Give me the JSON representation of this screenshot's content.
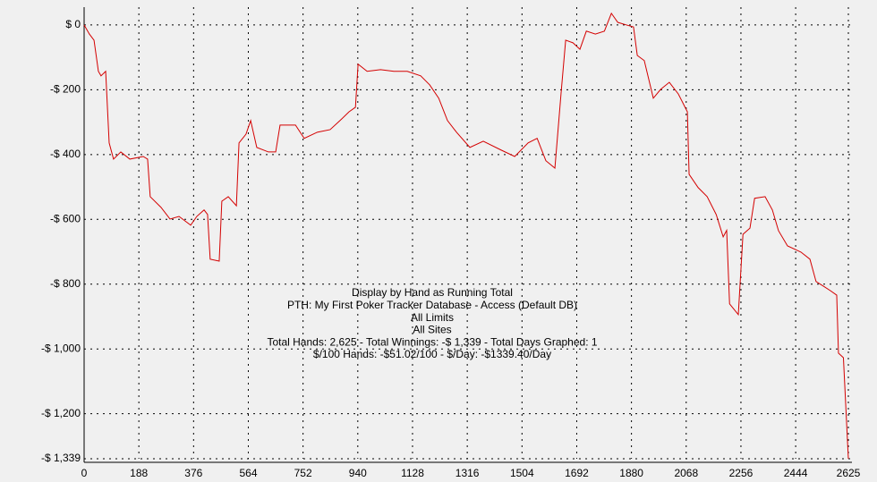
{
  "chart_data": {
    "type": "line",
    "annotations": [
      "Display by Hand as Running Total",
      "PTH: My First Poker Tracker Database - Access (Default DB)",
      "All Limits",
      "All Sites",
      "Total Hands: 2,625 - Total Winnings: -$ 1,339 - Total Days Graphed: 1",
      "$/100 Hands: -$51.02/100 - $/Day: -$1339.40/Day"
    ],
    "xlim": [
      0,
      2625
    ],
    "xticks": [
      0,
      188,
      376,
      564,
      752,
      940,
      1128,
      1316,
      1504,
      1692,
      1880,
      2068,
      2256,
      2444,
      2625
    ],
    "ylim": [
      -1339,
      55
    ],
    "yticks": [
      {
        "value": 0,
        "label": "$ 0"
      },
      {
        "value": -200,
        "label": "-$ 200"
      },
      {
        "value": -400,
        "label": "-$ 400"
      },
      {
        "value": -600,
        "label": "-$ 600"
      },
      {
        "value": -800,
        "label": "-$ 800"
      },
      {
        "value": -1000,
        "label": "-$ 1,000"
      },
      {
        "value": -1200,
        "label": "-$ 1,200"
      },
      {
        "value": -1339,
        "label": "-$ 1,339"
      }
    ],
    "grid": true,
    "series": [
      {
        "color": "#d40000",
        "x": [
          0,
          18,
          34,
          49,
          58,
          74,
          86,
          101,
          126,
          157,
          203,
          218,
          227,
          264,
          295,
          326,
          366,
          387,
          412,
          424,
          433,
          464,
          473,
          495,
          523,
          532,
          556,
          572,
          593,
          633,
          658,
          673,
          726,
          756,
          801,
          845,
          879,
          910,
          932,
          941,
          972,
          1018,
          1064,
          1110,
          1156,
          1187,
          1218,
          1248,
          1279,
          1325,
          1371,
          1432,
          1479,
          1525,
          1556,
          1586,
          1617,
          1638,
          1654,
          1679,
          1703,
          1725,
          1756,
          1787,
          1811,
          1833,
          1863,
          1887,
          1900,
          1924,
          1955,
          1980,
          2010,
          2041,
          2072,
          2078,
          2109,
          2140,
          2171,
          2195,
          2207,
          2217,
          2247,
          2263,
          2287,
          2303,
          2339,
          2364,
          2385,
          2416,
          2462,
          2493,
          2514,
          2539,
          2563,
          2585,
          2591,
          2608,
          2625
        ],
        "values": [
          0,
          -28,
          -47,
          -143,
          -157,
          -143,
          -364,
          -414,
          -392,
          -414,
          -406,
          -414,
          -530,
          -563,
          -599,
          -591,
          -618,
          -591,
          -571,
          -585,
          -723,
          -729,
          -544,
          -530,
          -558,
          -364,
          -337,
          -295,
          -378,
          -392,
          -392,
          -309,
          -309,
          -350,
          -331,
          -323,
          -295,
          -268,
          -254,
          -121,
          -143,
          -138,
          -143,
          -143,
          -157,
          -185,
          -226,
          -295,
          -331,
          -378,
          -359,
          -386,
          -406,
          -364,
          -350,
          -419,
          -442,
          -213,
          -47,
          -55,
          -75,
          -19,
          -28,
          -19,
          36,
          8,
          0,
          -6,
          -94,
          -110,
          -226,
          -199,
          -177,
          -213,
          -268,
          -461,
          -502,
          -530,
          -585,
          -654,
          -634,
          -861,
          -894,
          -646,
          -627,
          -535,
          -530,
          -571,
          -635,
          -682,
          -701,
          -723,
          -792,
          -806,
          -820,
          -834,
          -1013,
          -1027,
          -1339
        ]
      }
    ]
  }
}
